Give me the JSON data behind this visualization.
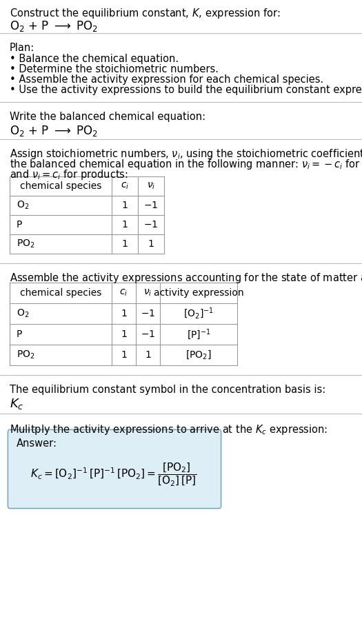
{
  "title_line1": "Construct the equilibrium constant, $K$, expression for:",
  "title_line2": "$\\mathrm{O_2}$ + P $\\longrightarrow$ $\\mathrm{PO_2}$",
  "plan_header": "Plan:",
  "plan_bullets": [
    "• Balance the chemical equation.",
    "• Determine the stoichiometric numbers.",
    "• Assemble the activity expression for each chemical species.",
    "• Use the activity expressions to build the equilibrium constant expression."
  ],
  "section2_header": "Write the balanced chemical equation:",
  "section2_equation": "$\\mathrm{O_2}$ + P $\\longrightarrow$ $\\mathrm{PO_2}$",
  "section3_header1": "Assign stoichiometric numbers, $\\nu_i$, using the stoichiometric coefficients, $c_i$, from",
  "section3_header2": "the balanced chemical equation in the following manner: $\\nu_i = -c_i$ for reactants",
  "section3_header3": "and $\\nu_i = c_i$ for products:",
  "table1_col0_header": "chemical species",
  "table1_col1_header": "$c_i$",
  "table1_col2_header": "$\\nu_i$",
  "table1_rows": [
    [
      "$\\mathrm{O_2}$",
      "1",
      "$-1$"
    ],
    [
      "P",
      "1",
      "$-1$"
    ],
    [
      "$\\mathrm{PO_2}$",
      "1",
      "1"
    ]
  ],
  "section4_header": "Assemble the activity expressions accounting for the state of matter and $\\nu_i$:",
  "table2_col0_header": "chemical species",
  "table2_col1_header": "$c_i$",
  "table2_col2_header": "$\\nu_i$",
  "table2_col3_header": "activity expression",
  "table2_rows": [
    [
      "$\\mathrm{O_2}$",
      "1",
      "$-1$",
      "$[\\mathrm{O_2}]^{-1}$"
    ],
    [
      "P",
      "1",
      "$-1$",
      "$[\\mathrm{P}]^{-1}$"
    ],
    [
      "$\\mathrm{PO_2}$",
      "1",
      "1",
      "$[\\mathrm{PO_2}]$"
    ]
  ],
  "section5_header": "The equilibrium constant symbol in the concentration basis is:",
  "section5_symbol": "$K_c$",
  "section6_header": "Mulitply the activity expressions to arrive at the $K_c$ expression:",
  "answer_label": "Answer:",
  "bg_color": "#ffffff",
  "text_color": "#000000",
  "table_border_color": "#999999",
  "answer_box_bg": "#ddeef6",
  "answer_box_border": "#7aaabb",
  "separator_color": "#bbbbbb",
  "font_size_body": 10.5,
  "font_size_equation": 12,
  "font_size_table": 10
}
